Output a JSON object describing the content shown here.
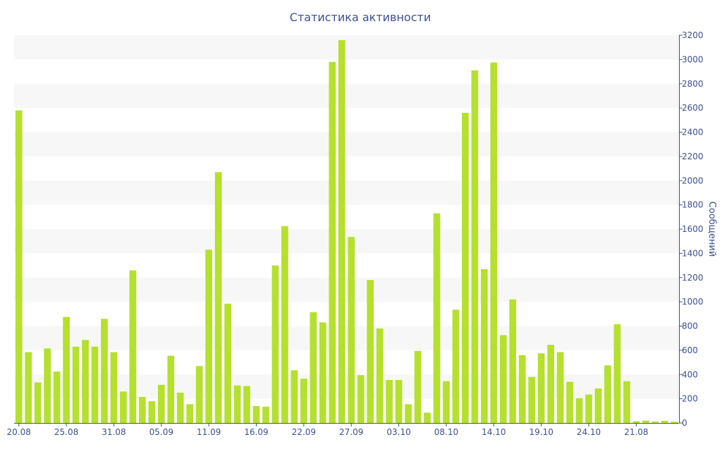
{
  "chart_data": {
    "type": "bar",
    "title": "Статистика активности",
    "ylabel": "Сообщений",
    "ylim": [
      0,
      3200
    ],
    "y_ticks": [
      0,
      200,
      400,
      600,
      800,
      1000,
      1200,
      1400,
      1600,
      1800,
      2000,
      2200,
      2400,
      2600,
      2800,
      3000,
      3200
    ],
    "y_axis_position": "right",
    "grid": "alternating horizontal bands",
    "x_tick_labels": [
      {
        "index": 0,
        "label": "20.08"
      },
      {
        "index": 5,
        "label": "25.08"
      },
      {
        "index": 10,
        "label": "31.08"
      },
      {
        "index": 15,
        "label": "05.09"
      },
      {
        "index": 20,
        "label": "11.09"
      },
      {
        "index": 25,
        "label": "16.09"
      },
      {
        "index": 30,
        "label": "22.09"
      },
      {
        "index": 35,
        "label": "27.09"
      },
      {
        "index": 40,
        "label": "03.10"
      },
      {
        "index": 45,
        "label": "08.10"
      },
      {
        "index": 50,
        "label": "14.10"
      },
      {
        "index": 55,
        "label": "19.10"
      },
      {
        "index": 60,
        "label": "24.10"
      },
      {
        "index": 65,
        "label": "21.08"
      }
    ],
    "values": [
      2580,
      585,
      335,
      615,
      425,
      875,
      630,
      685,
      630,
      860,
      585,
      260,
      1260,
      215,
      180,
      315,
      555,
      250,
      155,
      470,
      1430,
      2070,
      985,
      310,
      305,
      140,
      135,
      1300,
      1625,
      435,
      365,
      915,
      830,
      2980,
      3160,
      1535,
      395,
      1180,
      780,
      355,
      355,
      155,
      595,
      85,
      1730,
      345,
      935,
      2560,
      2910,
      1270,
      2975,
      725,
      1020,
      560,
      380,
      575,
      645,
      585,
      340,
      205,
      235,
      285,
      475,
      815,
      345,
      15,
      20,
      12,
      18,
      10
    ],
    "colors": {
      "bar": "#b5e02e",
      "band": "#f7f7f7",
      "axis": "#3d4f8f",
      "text": "#3d4f8f"
    }
  }
}
